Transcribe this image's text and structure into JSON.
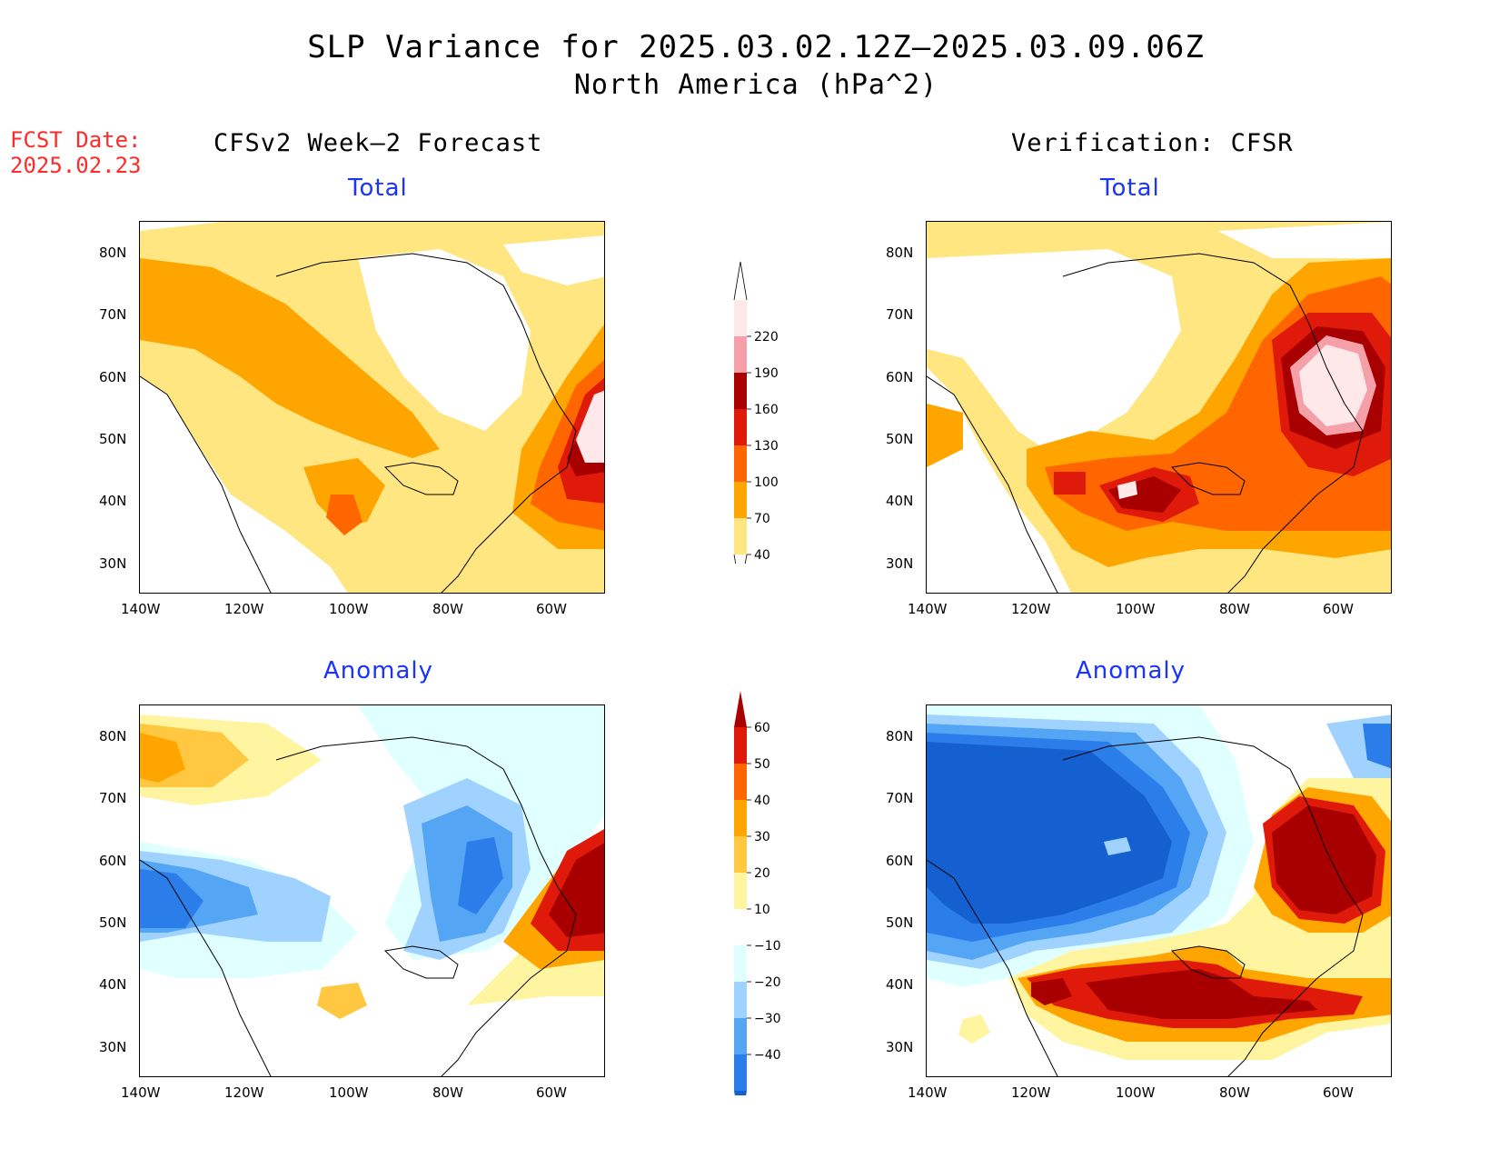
{
  "title": {
    "line1": "SLP Variance for 2025.03.02.12Z–2025.03.09.06Z",
    "line2": "North America (hPa^2)"
  },
  "forecast_date": {
    "label": "FCST Date:",
    "value": "2025.02.23"
  },
  "columns": {
    "left": "CFSv2 Week–2 Forecast",
    "right": "Verification: CFSR"
  },
  "panels": {
    "top_left": "Total",
    "top_right": "Total",
    "bottom_left": "Anomaly",
    "bottom_right": "Anomaly"
  },
  "axes": {
    "lat_labels": [
      "80N",
      "70N",
      "60N",
      "50N",
      "40N",
      "30N"
    ],
    "lon_labels": [
      "140W",
      "120W",
      "100W",
      "80W",
      "60W"
    ]
  },
  "colorbar_total": {
    "labels": [
      "40",
      "70",
      "100",
      "130",
      "160",
      "190",
      "220"
    ],
    "colors": [
      "#ffe680",
      "#ffa500",
      "#ff6600",
      "#e01a0a",
      "#a80000",
      "#f5a0a8",
      "#ffe8ea"
    ]
  },
  "colorbar_anomaly": {
    "labels": [
      "60",
      "50",
      "40",
      "30",
      "20",
      "10",
      "−10",
      "−20",
      "−30",
      "−40"
    ],
    "colors": [
      "#a80000",
      "#e01a0a",
      "#ff6600",
      "#ffa500",
      "#ffc840",
      "#fff5a0",
      "#ffffff",
      "#e0ffff",
      "#a0d2ff",
      "#55a5f5",
      "#2b7de9",
      "#1560d0"
    ]
  }
}
